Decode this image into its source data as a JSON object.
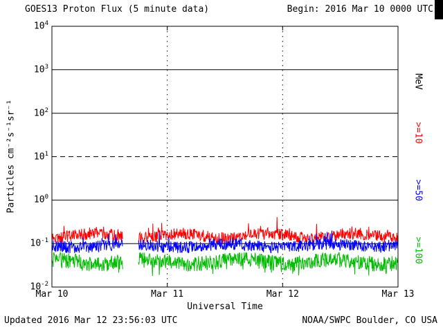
{
  "chart_data": {
    "type": "line",
    "title": "GOES13 Proton Flux (5 minute data)",
    "begin_label": "Begin: 2016 Mar 10 0000 UTC",
    "xlabel": "Universal Time",
    "ylabel": "Particles cm⁻²s⁻¹sr⁻¹",
    "right_axis_unit": "MeV",
    "updated_label": "Updated 2016 Mar 12 23:56:03 UTC",
    "source_label": "NOAA/SWPC Boulder, CO USA",
    "x_tick_labels": [
      "Mar 10",
      "Mar 11",
      "Mar 12",
      "Mar 13"
    ],
    "y_tick_exponents": [
      4,
      3,
      2,
      1,
      0,
      -1,
      -2
    ],
    "y_scale": "log10",
    "y_unit": "Particles cm-2 s-1 sr-1",
    "hours_total": 72,
    "cadence_minutes": 5,
    "data_gap_hours": [
      14.8,
      18.0
    ],
    "h_gridlines": [
      {
        "exp": 3,
        "style": "solid"
      },
      {
        "exp": 2,
        "style": "solid"
      },
      {
        "exp": 1,
        "style": "dashed"
      },
      {
        "exp": 0,
        "style": "solid"
      },
      {
        "exp": -1,
        "style": "solid"
      }
    ],
    "v_gridline_day_indices": [
      1,
      2
    ],
    "series": [
      {
        "label": ">=10",
        "color": "#ff0000",
        "seed": 11,
        "log10_base": -0.82,
        "noise": 0.09,
        "wobble": 0.05,
        "wobble_freq": 0.35,
        "spike_prob": 0.05,
        "spike_amp": 0.3,
        "spike_dir": 1,
        "typical_flux_range": [
          0.09,
          0.35
        ]
      },
      {
        "label": ">=50",
        "color": "#0000ff",
        "seed": 22,
        "log10_base": -1.05,
        "noise": 0.09,
        "wobble": 0.04,
        "wobble_freq": 0.3,
        "spike_prob": 0.04,
        "spike_amp": 0.22,
        "spike_dir": 1,
        "typical_flux_range": [
          0.05,
          0.16
        ]
      },
      {
        "label": ">=100",
        "color": "#00bb00",
        "seed": 33,
        "log10_base": -1.42,
        "noise": 0.12,
        "wobble": 0.05,
        "wobble_freq": 0.32,
        "spike_prob": 0.06,
        "spike_amp": 0.22,
        "spike_dir": -1,
        "typical_flux_range": [
          0.02,
          0.08
        ]
      }
    ]
  }
}
